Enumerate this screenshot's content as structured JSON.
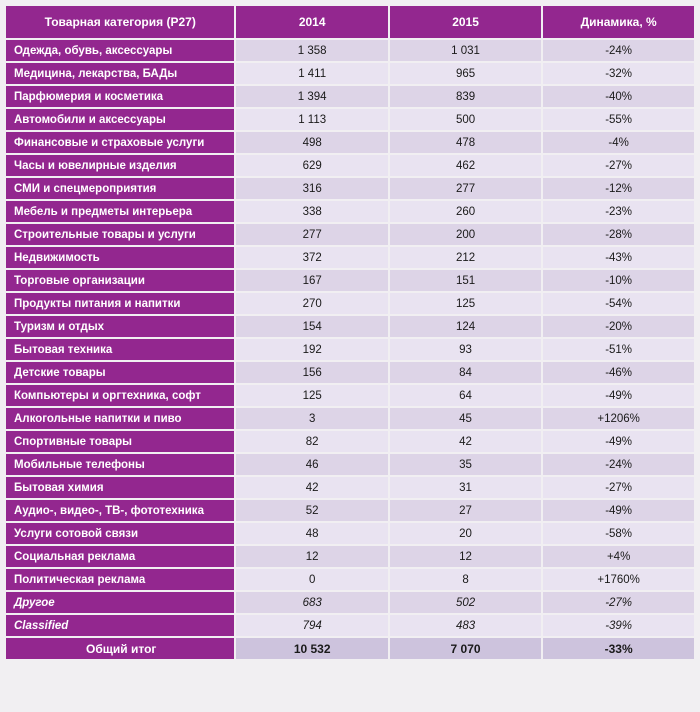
{
  "chart_data": {
    "type": "table",
    "columns": [
      "Товарная категория (Р27)",
      "2014",
      "2015",
      "Динамика, %"
    ],
    "rows": [
      {
        "category": "Одежда, обувь,  аксессуары",
        "v2014": "1 358",
        "v2015": "1 031",
        "dynamics": "-24%",
        "italic": false
      },
      {
        "category": "Медицина, лекарства, БАДы",
        "v2014": "1 411",
        "v2015": "965",
        "dynamics": "-32%",
        "italic": false
      },
      {
        "category": "Парфюмерия и косметика",
        "v2014": "1 394",
        "v2015": "839",
        "dynamics": "-40%",
        "italic": false
      },
      {
        "category": "Автомобили и аксессуары",
        "v2014": "1 113",
        "v2015": "500",
        "dynamics": "-55%",
        "italic": false
      },
      {
        "category": "Финансовые и страховые услуги",
        "v2014": "498",
        "v2015": "478",
        "dynamics": "-4%",
        "italic": false
      },
      {
        "category": "Часы и ювелирные изделия",
        "v2014": "629",
        "v2015": "462",
        "dynamics": "-27%",
        "italic": false
      },
      {
        "category": "СМИ и спецмероприятия",
        "v2014": "316",
        "v2015": "277",
        "dynamics": "-12%",
        "italic": false
      },
      {
        "category": "Мебель и предметы интерьера",
        "v2014": "338",
        "v2015": "260",
        "dynamics": "-23%",
        "italic": false
      },
      {
        "category": "Строительные товары и услуги",
        "v2014": "277",
        "v2015": "200",
        "dynamics": "-28%",
        "italic": false
      },
      {
        "category": "Недвижимость",
        "v2014": "372",
        "v2015": "212",
        "dynamics": "-43%",
        "italic": false
      },
      {
        "category": "Торговые организации",
        "v2014": "167",
        "v2015": "151",
        "dynamics": "-10%",
        "italic": false
      },
      {
        "category": "Продукты питания и напитки",
        "v2014": "270",
        "v2015": "125",
        "dynamics": "-54%",
        "italic": false
      },
      {
        "category": "Туризм и отдых",
        "v2014": "154",
        "v2015": "124",
        "dynamics": "-20%",
        "italic": false
      },
      {
        "category": "Бытовая техника",
        "v2014": "192",
        "v2015": "93",
        "dynamics": "-51%",
        "italic": false
      },
      {
        "category": "Детские товары",
        "v2014": "156",
        "v2015": "84",
        "dynamics": "-46%",
        "italic": false
      },
      {
        "category": "Компьютеры и оргтехника, софт",
        "v2014": "125",
        "v2015": "64",
        "dynamics": "-49%",
        "italic": false
      },
      {
        "category": "Алкогольные напитки и пиво",
        "v2014": "3",
        "v2015": "45",
        "dynamics": "+1206%",
        "italic": false
      },
      {
        "category": "Спортивные товары",
        "v2014": "82",
        "v2015": "42",
        "dynamics": "-49%",
        "italic": false
      },
      {
        "category": "Мобильные телефоны",
        "v2014": "46",
        "v2015": "35",
        "dynamics": "-24%",
        "italic": false
      },
      {
        "category": "Бытовая химия",
        "v2014": "42",
        "v2015": "31",
        "dynamics": "-27%",
        "italic": false
      },
      {
        "category": "Аудио-, видео-, ТВ-, фототехника",
        "v2014": "52",
        "v2015": "27",
        "dynamics": "-49%",
        "italic": false
      },
      {
        "category": "Услуги сотовой связи",
        "v2014": "48",
        "v2015": "20",
        "dynamics": "-58%",
        "italic": false
      },
      {
        "category": "Социальная реклама",
        "v2014": "12",
        "v2015": "12",
        "dynamics": "+4%",
        "italic": false
      },
      {
        "category": "Политическая реклама",
        "v2014": "0",
        "v2015": "8",
        "dynamics": "+1760%",
        "italic": false
      },
      {
        "category": "Другое",
        "v2014": "683",
        "v2015": "502",
        "dynamics": "-27%",
        "italic": true
      },
      {
        "category": "Classified",
        "v2014": "794",
        "v2015": "483",
        "dynamics": "-39%",
        "italic": true
      }
    ],
    "total": {
      "category": "Общий итог",
      "v2014": "10 532",
      "v2015": "7 070",
      "dynamics": "-33%"
    }
  },
  "colors": {
    "header_purple": "#93278F",
    "row_dark": "#DDD4E7",
    "row_light": "#E9E3F1",
    "total_row": "#CDC3DD",
    "gap_white": "#FFFFFF"
  }
}
